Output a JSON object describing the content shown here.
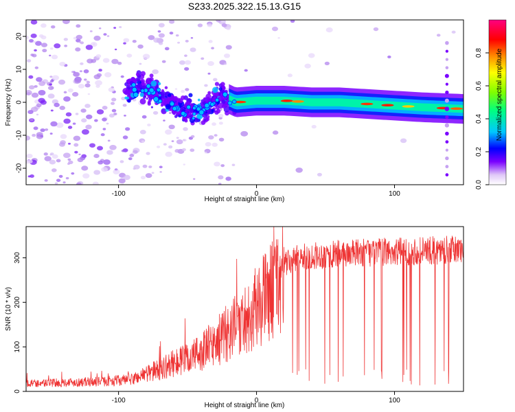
{
  "figure_title": "S233.2025.322.15.13.G15",
  "chart_data": [
    {
      "type": "heatmap",
      "title": "",
      "xlabel": "Height of straight line (km)",
      "ylabel": "Frequency (Hz)",
      "xlim": [
        -167,
        150
      ],
      "ylim": [
        -25,
        25
      ],
      "xticks": [
        -100,
        0,
        100
      ],
      "yticks": [
        -20,
        -10,
        0,
        10,
        20
      ],
      "colorbar": {
        "label": "Normalized spectral amplitude",
        "range": [
          0,
          1
        ],
        "ticks": [
          "0.0",
          "0.2",
          "0.4",
          "0.6",
          "0.8"
        ],
        "tick_values": [
          0.0,
          0.2,
          0.4,
          0.6,
          0.8
        ],
        "colormap": [
          "#ffffff",
          "#c8a8f0",
          "#7a00ff",
          "#0000ff",
          "#00c8ff",
          "#00ff7f",
          "#7fff00",
          "#ffff00",
          "#ff8c00",
          "#ff0000",
          "#ff0080"
        ]
      },
      "ridge": {
        "description": "dominant frequency trace",
        "x": [
          -95,
          -85,
          -75,
          -65,
          -55,
          -45,
          -35,
          -25,
          -15,
          0,
          20,
          40,
          60,
          80,
          100,
          120,
          150
        ],
        "y": [
          3,
          5,
          3,
          0,
          -2,
          -3,
          -1,
          2,
          0,
          0.5,
          0.5,
          0,
          0,
          -0.5,
          -1,
          -1.5,
          -2
        ]
      },
      "grid": false
    },
    {
      "type": "line",
      "title": "",
      "xlabel": "Height of straight line (km)",
      "ylabel": "SNR (10 * v/v)",
      "xlim": [
        -167,
        150
      ],
      "ylim": [
        0,
        370
      ],
      "xticks": [
        -100,
        0,
        100
      ],
      "yticks": [
        0,
        100,
        200,
        300
      ],
      "series": [
        {
          "color": "#ee3333",
          "envelope_x": [
            -167,
            -140,
            -110,
            -90,
            -80,
            -70,
            -60,
            -50,
            -40,
            -30,
            -20,
            -10,
            0,
            10,
            20,
            30,
            40,
            60,
            80,
            100,
            120,
            150
          ],
          "envelope_y": [
            20,
            22,
            25,
            30,
            45,
            55,
            70,
            80,
            100,
            120,
            150,
            175,
            210,
            250,
            290,
            305,
            310,
            315,
            318,
            320,
            322,
            325
          ]
        }
      ],
      "grid": false
    }
  ]
}
